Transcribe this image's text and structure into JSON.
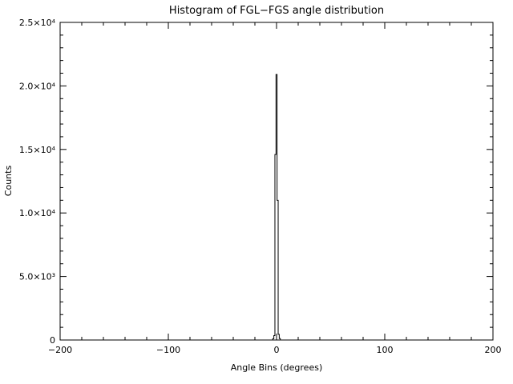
{
  "colors": {
    "background": "#ffffff",
    "axis": "#000000",
    "series": "#000000"
  },
  "chart_data": {
    "type": "bar",
    "subtype": "histogram-step",
    "title": "Histogram of FGL−FGS angle distribution",
    "xlabel": "Angle Bins (degrees)",
    "ylabel": "Counts",
    "xlim": [
      -200,
      200
    ],
    "ylim": [
      0,
      25000
    ],
    "grid": false,
    "legend": "none",
    "xticks": [
      {
        "value": -200,
        "label": "−200"
      },
      {
        "value": -100,
        "label": "−100"
      },
      {
        "value": 0,
        "label": "0"
      },
      {
        "value": 100,
        "label": "100"
      },
      {
        "value": 200,
        "label": "200"
      }
    ],
    "yticks": [
      {
        "value": 0,
        "label": "0"
      },
      {
        "value": 5000,
        "label": "5.0×10³"
      },
      {
        "value": 10000,
        "label": "1.0×10⁴"
      },
      {
        "value": 15000,
        "label": "1.5×10⁴"
      },
      {
        "value": 20000,
        "label": "2.0×10⁴"
      },
      {
        "value": 25000,
        "label": "2.5×10⁴"
      }
    ],
    "x_minor_interval": 20,
    "y_minor_interval": 1000,
    "bin_width": 1,
    "bins": [
      {
        "x": -3,
        "count": 100
      },
      {
        "x": -2,
        "count": 350
      },
      {
        "x": -1,
        "count": 14600
      },
      {
        "x": 0,
        "count": 20900
      },
      {
        "x": 1,
        "count": 11000
      },
      {
        "x": 2,
        "count": 450
      },
      {
        "x": 3,
        "count": 120
      }
    ],
    "peak": {
      "x": 0,
      "count": 20900
    }
  }
}
